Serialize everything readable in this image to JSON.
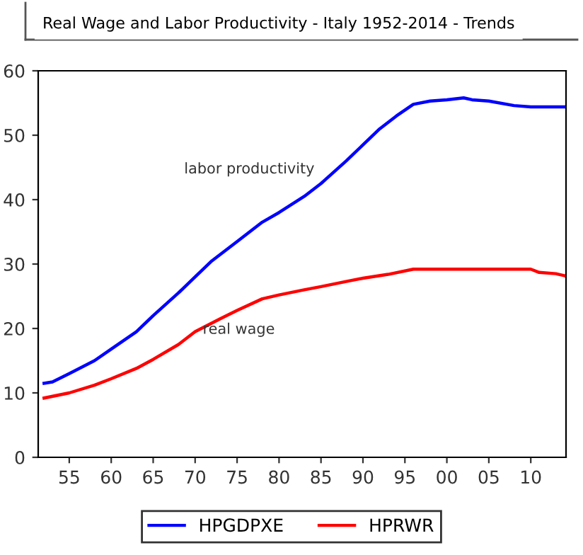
{
  "chart_data": {
    "type": "line",
    "title": "Real Wage and Labor Productivity - Italy 1952-2014 - Trends",
    "series": [
      {
        "name": "HPGDPXE",
        "color": "#0000ff",
        "x": [
          1952,
          1953,
          1955,
          1958,
          1960,
          1963,
          1965,
          1968,
          1970,
          1972,
          1975,
          1978,
          1980,
          1983,
          1985,
          1988,
          1990,
          1992,
          1994,
          1996,
          1998,
          2000,
          2002,
          2003,
          2005,
          2008,
          2010,
          2014
        ],
        "values": [
          11.5,
          11.7,
          13,
          15,
          16.8,
          19.5,
          22,
          25.5,
          28,
          30.5,
          33.5,
          36.5,
          38,
          40.5,
          42.5,
          46,
          48.5,
          51,
          53,
          54.8,
          55.3,
          55.5,
          55.8,
          55.5,
          55.3,
          54.6,
          54.4,
          54.4
        ]
      },
      {
        "name": "HPRWR",
        "color": "#ff0000",
        "x": [
          1952,
          1955,
          1958,
          1960,
          1963,
          1965,
          1968,
          1970,
          1973,
          1975,
          1978,
          1980,
          1983,
          1985,
          1988,
          1990,
          1993,
          1996,
          2000,
          2005,
          2010,
          2011,
          2013,
          2014
        ],
        "values": [
          9.2,
          10,
          11.2,
          12.2,
          13.8,
          15.2,
          17.5,
          19.5,
          21.5,
          22.8,
          24.6,
          25.2,
          26,
          26.5,
          27.3,
          27.8,
          28.4,
          29.2,
          29.2,
          29.2,
          29.2,
          28.7,
          28.5,
          28.2
        ]
      }
    ],
    "annotations": [
      "labor productivity",
      "real wage"
    ],
    "xlim": [
      1951.3,
      2014.2
    ],
    "xticks": [
      {
        "value": 1955,
        "label": "55"
      },
      {
        "value": 1960,
        "label": "60"
      },
      {
        "value": 1965,
        "label": "65"
      },
      {
        "value": 1970,
        "label": "70"
      },
      {
        "value": 1975,
        "label": "75"
      },
      {
        "value": 1980,
        "label": "80"
      },
      {
        "value": 1985,
        "label": "85"
      },
      {
        "value": 1990,
        "label": "90"
      },
      {
        "value": 1995,
        "label": "95"
      },
      {
        "value": 2000,
        "label": "00"
      },
      {
        "value": 2005,
        "label": "05"
      },
      {
        "value": 2010,
        "label": "10"
      }
    ],
    "ylim": [
      0,
      60
    ],
    "yticks": [
      0,
      10,
      20,
      30,
      40,
      50,
      60
    ],
    "grid": false,
    "legend": "bottom"
  }
}
